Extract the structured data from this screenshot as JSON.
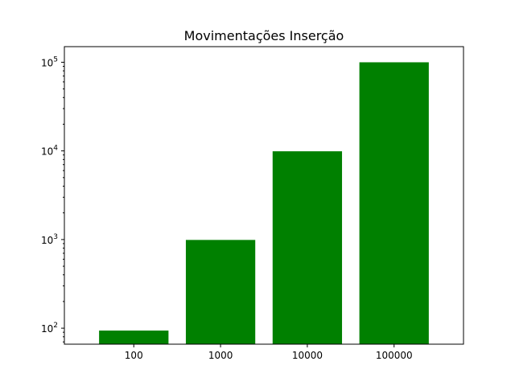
{
  "chart_data": {
    "type": "bar",
    "title": "Movimentações Inserção",
    "xlabel": "",
    "ylabel": "",
    "yscale": "log",
    "ylim": [
      66,
      150000
    ],
    "categories": [
      "100",
      "1000",
      "10000",
      "100000"
    ],
    "values": [
      94,
      990,
      9900,
      99900
    ],
    "bar_color": "#008000",
    "y_ticks": [
      {
        "value": 100,
        "base": "10",
        "exp": "2"
      },
      {
        "value": 1000,
        "base": "10",
        "exp": "3"
      },
      {
        "value": 10000,
        "base": "10",
        "exp": "4"
      },
      {
        "value": 100000,
        "base": "10",
        "exp": "5"
      }
    ],
    "grid": false,
    "legend": "none"
  }
}
